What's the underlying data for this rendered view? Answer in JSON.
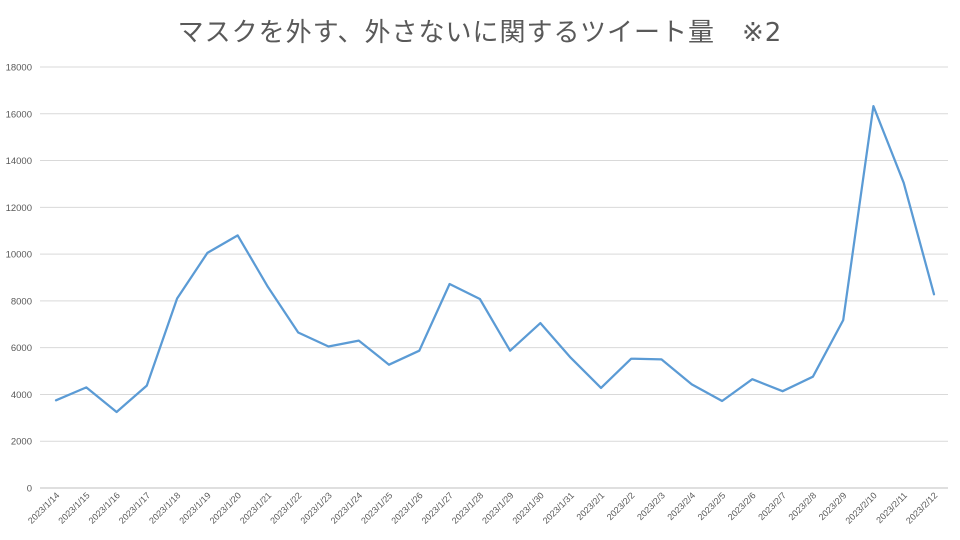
{
  "chart_data": {
    "type": "line",
    "title": "マスクを外す、外さないに関するツイート量　※2",
    "xlabel": "",
    "ylabel": "",
    "ylim": [
      0,
      18000
    ],
    "yticks": [
      0,
      2000,
      4000,
      6000,
      8000,
      10000,
      12000,
      14000,
      16000,
      18000
    ],
    "grid": true,
    "legend": "none",
    "line_color": "#5b9bd5",
    "categories": [
      "2023/1/14",
      "2023/1/15",
      "2023/1/16",
      "2023/1/17",
      "2023/1/18",
      "2023/1/19",
      "2023/1/20",
      "2023/1/21",
      "2023/1/22",
      "2023/1/23",
      "2023/1/24",
      "2023/1/25",
      "2023/1/26",
      "2023/1/27",
      "2023/1/28",
      "2023/1/29",
      "2023/1/30",
      "2023/1/31",
      "2023/2/1",
      "2023/2/2",
      "2023/2/3",
      "2023/2/4",
      "2023/2/5",
      "2023/2/6",
      "2023/2/7",
      "2023/2/8",
      "2023/2/9",
      "2023/2/10",
      "2023/2/11",
      "2023/2/12"
    ],
    "series": [
      {
        "values": [
          3750,
          4300,
          3250,
          4380,
          8100,
          10050,
          10800,
          8600,
          6650,
          6050,
          6300,
          5270,
          5870,
          8720,
          8080,
          5870,
          7050,
          5570,
          4280,
          5530,
          5500,
          4430,
          3720,
          4650,
          4140,
          4760,
          7180,
          16330,
          13050,
          8280
        ]
      }
    ]
  }
}
